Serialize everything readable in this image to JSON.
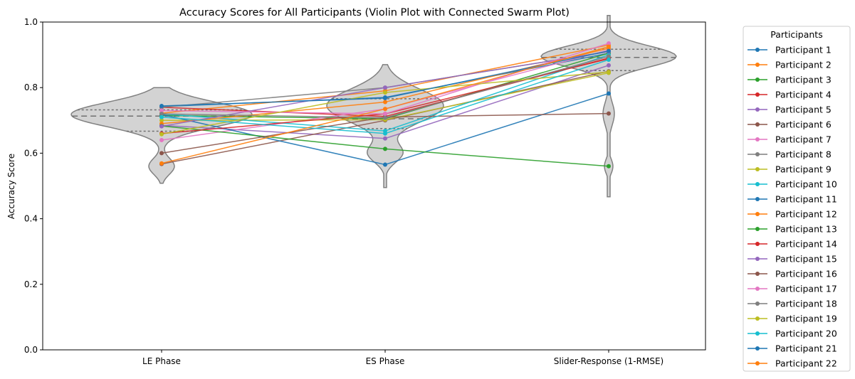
{
  "chart_data": {
    "type": "violin+swarm",
    "title": "Accuracy Scores for All Participants (Violin Plot with Connected Swarm Plot)",
    "xlabel": "",
    "ylabel": "Accuracy Score",
    "ylim": [
      0.0,
      1.0
    ],
    "yticks": [
      "0.0",
      "0.2",
      "0.4",
      "0.6",
      "0.8",
      "1.0"
    ],
    "categories": [
      "LE Phase",
      "ES Phase",
      "Slider-Response (1-RMSE)"
    ],
    "legend_title": "Participants",
    "legend_position": "outside-right",
    "violin_quartiles": [
      {
        "q1": 0.667,
        "median": 0.713,
        "q3": 0.732
      },
      {
        "q1": 0.675,
        "median": 0.705,
        "q3": 0.766
      },
      {
        "q1": 0.852,
        "median": 0.892,
        "q3": 0.917
      }
    ],
    "series": [
      {
        "name": "Participant 1",
        "color": "#1f77b4",
        "values": [
          0.742,
          0.77,
          0.905
        ]
      },
      {
        "name": "Participant 2",
        "color": "#ff7f0e",
        "values": [
          0.722,
          0.79,
          0.93
        ]
      },
      {
        "name": "Participant 3",
        "color": "#2ca02c",
        "values": [
          0.715,
          0.705,
          0.905
        ]
      },
      {
        "name": "Participant 4",
        "color": "#d62728",
        "values": [
          0.74,
          0.712,
          0.89
        ]
      },
      {
        "name": "Participant 5",
        "color": "#9467bd",
        "values": [
          0.685,
          0.645,
          0.868
        ]
      },
      {
        "name": "Participant 6",
        "color": "#8c564b",
        "values": [
          0.567,
          0.7,
          0.85
        ]
      },
      {
        "name": "Participant 7",
        "color": "#e377c2",
        "values": [
          0.64,
          0.735,
          0.915
        ]
      },
      {
        "name": "Participant 8",
        "color": "#7f7f7f",
        "values": [
          0.74,
          0.8,
          0.91
        ]
      },
      {
        "name": "Participant 9",
        "color": "#bcbd22",
        "values": [
          0.7,
          0.702,
          0.845
        ]
      },
      {
        "name": "Participant 10",
        "color": "#17becf",
        "values": [
          0.72,
          0.668,
          0.9
        ]
      },
      {
        "name": "Participant 11",
        "color": "#1f77b4",
        "values": [
          0.718,
          0.565,
          0.782
        ]
      },
      {
        "name": "Participant 12",
        "color": "#ff7f0e",
        "values": [
          0.69,
          0.756,
          0.92
        ]
      },
      {
        "name": "Participant 13",
        "color": "#2ca02c",
        "values": [
          0.683,
          0.613,
          0.56
        ]
      },
      {
        "name": "Participant 14",
        "color": "#d62728",
        "values": [
          0.66,
          0.72,
          0.888
        ]
      },
      {
        "name": "Participant 15",
        "color": "#9467bd",
        "values": [
          0.682,
          0.8,
          0.91
        ]
      },
      {
        "name": "Participant 16",
        "color": "#8c564b",
        "values": [
          0.6,
          0.71,
          0.721
        ]
      },
      {
        "name": "Participant 17",
        "color": "#e377c2",
        "values": [
          0.73,
          0.72,
          0.935
        ]
      },
      {
        "name": "Participant 18",
        "color": "#7f7f7f",
        "values": [
          0.72,
          0.708,
          0.895
        ]
      },
      {
        "name": "Participant 19",
        "color": "#bcbd22",
        "values": [
          0.658,
          0.785,
          0.848
        ]
      },
      {
        "name": "Participant 20",
        "color": "#17becf",
        "values": [
          0.71,
          0.66,
          0.885
        ]
      },
      {
        "name": "Participant 21",
        "color": "#1f77b4",
        "values": [
          0.744,
          0.768,
          0.912
        ]
      },
      {
        "name": "Participant 22",
        "color": "#ff7f0e",
        "values": [
          0.569,
          0.735,
          0.925
        ]
      }
    ]
  }
}
